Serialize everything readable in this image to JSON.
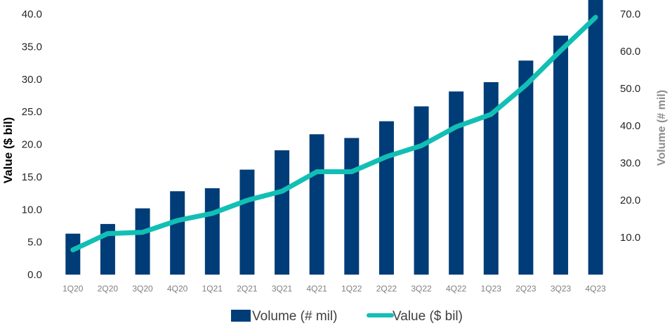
{
  "chart_data": {
    "type": "bar",
    "title": "",
    "categories": [
      "1Q20",
      "2Q20",
      "3Q20",
      "4Q20",
      "1Q21",
      "2Q21",
      "3Q21",
      "4Q21",
      "1Q22",
      "2Q22",
      "3Q22",
      "4Q22",
      "1Q23",
      "2Q23",
      "3Q23",
      "4Q23"
    ],
    "series": [
      {
        "name": "Volume (# mil)",
        "kind": "bar",
        "axis": "right",
        "color": "#003C78",
        "values": [
          11.0,
          13.6,
          17.8,
          22.4,
          23.2,
          28.2,
          33.4,
          37.7,
          36.7,
          41.2,
          45.2,
          49.2,
          51.7,
          57.5,
          64.2,
          74.0
        ]
      },
      {
        "name": "Value ($ bil)",
        "kind": "line",
        "axis": "left",
        "color": "#12BFB4",
        "values": [
          3.8,
          6.3,
          6.5,
          8.3,
          9.4,
          11.4,
          12.8,
          15.8,
          15.8,
          18.1,
          19.8,
          22.7,
          24.6,
          29.1,
          34.4,
          39.5
        ]
      }
    ],
    "ylabel": "Value ($ bil)",
    "ylim": [
      0,
      40
    ],
    "yticks": [
      "0.0",
      "5.0",
      "10.0",
      "15.0",
      "20.0",
      "25.0",
      "30.0",
      "35.0",
      "40.0"
    ],
    "y2label": "Volume  (# mil)",
    "y2lim": [
      0,
      70
    ],
    "y2ticks": [
      "10.0",
      "20.0",
      "30.0",
      "40.0",
      "50.0",
      "60.0",
      "70.0"
    ],
    "legend_position": "bottom",
    "grid": false
  }
}
